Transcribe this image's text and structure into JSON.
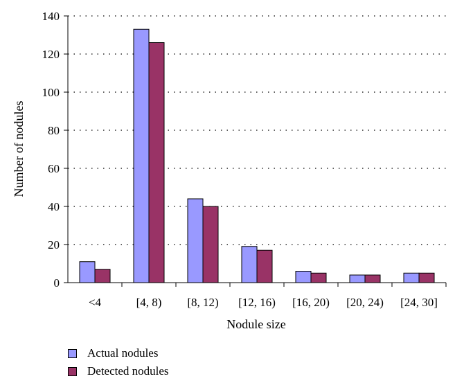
{
  "chart_data": {
    "type": "bar",
    "title": "",
    "xlabel": "Nodule size",
    "ylabel": "Number of nodules",
    "categories": [
      "<4",
      "[4, 8)",
      "[8, 12)",
      "[12, 16)",
      "[16, 20)",
      "[20, 24)",
      "[24, 30]"
    ],
    "series": [
      {
        "name": "Actual nodules",
        "values": [
          11,
          133,
          44,
          19,
          6,
          4,
          5
        ],
        "color": "#9999ff"
      },
      {
        "name": "Detected nodules",
        "values": [
          7,
          126,
          40,
          17,
          5,
          4,
          5
        ],
        "color": "#993366"
      }
    ],
    "ylim": [
      0,
      140
    ],
    "yticks": [
      0,
      20,
      40,
      60,
      80,
      100,
      120,
      140
    ],
    "grid": "horizontal dotted",
    "legend": "bottom-left"
  }
}
